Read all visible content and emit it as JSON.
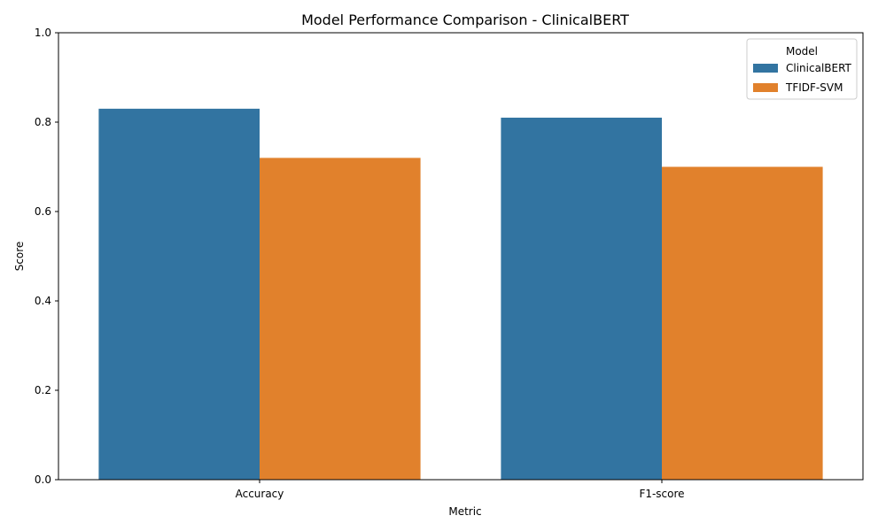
{
  "chart_data": {
    "type": "bar",
    "title": "Model Performance Comparison - ClinicalBERT",
    "xlabel": "Metric",
    "ylabel": "Score",
    "categories": [
      "Accuracy",
      "F1-score"
    ],
    "series": [
      {
        "name": "ClinicalBERT",
        "values": [
          0.83,
          0.81
        ],
        "color": "#3274a1"
      },
      {
        "name": "TFIDF-SVM",
        "values": [
          0.72,
          0.7
        ],
        "color": "#e1812c"
      }
    ],
    "ylim": [
      0,
      1.0
    ],
    "yticks": [
      "0.0",
      "0.2",
      "0.4",
      "0.6",
      "0.8",
      "1.0"
    ],
    "grid": false,
    "legend": {
      "title": "Model",
      "placement": "top-right"
    }
  }
}
